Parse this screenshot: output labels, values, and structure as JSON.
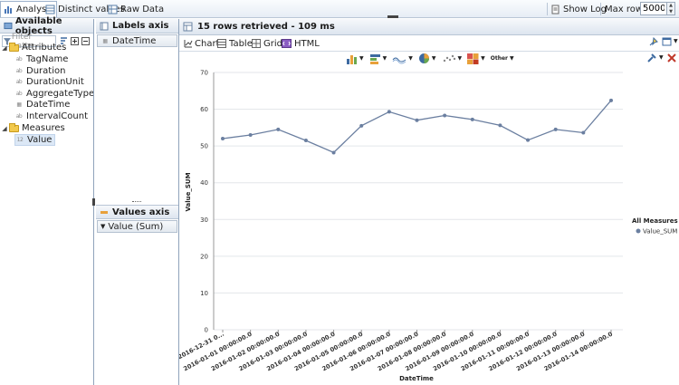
{
  "toolbar": {
    "analysis": "Analysis",
    "distinct": "Distinct values",
    "raw": "Raw Data",
    "show_log": "Show Log",
    "max_rows_label": "Max rows:",
    "max_rows_value": "5000"
  },
  "objects_panel": {
    "title": "Available objects",
    "filter_placeholder": "Filter patte",
    "attributes_label": "Attributes",
    "attributes": [
      "TagName",
      "Duration",
      "DurationUnit",
      "AggregateType",
      "DateTime",
      "IntervalCount"
    ],
    "measures_label": "Measures",
    "measures": [
      "Value"
    ]
  },
  "labels_axis": {
    "title": "Labels axis",
    "field": "DateTime"
  },
  "values_axis": {
    "title": "Values axis",
    "field": "Value (Sum)"
  },
  "result": {
    "status": "15 rows retrieved - 109 ms"
  },
  "view_tabs": [
    "Chart",
    "Table",
    "Grid",
    "HTML"
  ],
  "chart_toolbar": {
    "other_label": "Other"
  },
  "colors": {
    "series": "#6b7fa0",
    "header_bg": "#e6edf5",
    "border": "#b9c6d6"
  },
  "chart_data": {
    "type": "line",
    "x": [
      "2016-12-31 0...",
      "2016-01-01 00:00:00.0",
      "2016-01-02 00:00:00.0",
      "2016-01-03 00:00:00.0",
      "2016-01-04 00:00:00.0",
      "2016-01-05 00:00:00.0",
      "2016-01-06 00:00:00.0",
      "2016-01-07 00:00:00.0",
      "2016-01-08 00:00:00.0",
      "2016-01-09 00:00:00.0",
      "2016-01-10 00:00:00.0",
      "2016-01-11 00:00:00.0",
      "2016-01-12 00:00:00.0",
      "2016-01-13 00:00:00.0",
      "2016-01-14 00:00:00.0"
    ],
    "series": [
      {
        "name": "Value_SUM",
        "values": [
          52,
          53,
          54.5,
          51.5,
          48.2,
          55.5,
          59.3,
          57,
          58.3,
          57.2,
          55.6,
          51.6,
          54.5,
          53.6,
          62.4
        ]
      }
    ],
    "xlabel": "DateTime",
    "ylabel": "Value_SUM",
    "ylim": [
      0,
      70
    ],
    "yticks": [
      0,
      10,
      20,
      30,
      40,
      50,
      60,
      70
    ],
    "grid": true,
    "legend": {
      "title": "All Measures",
      "position": "right"
    }
  }
}
